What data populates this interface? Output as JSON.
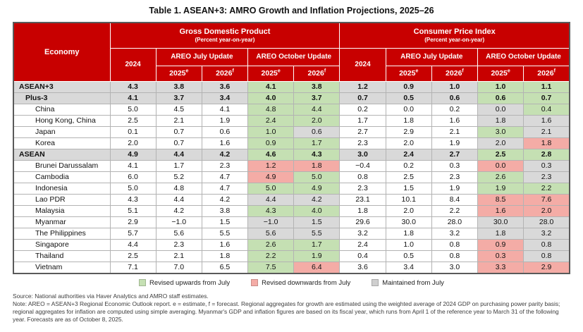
{
  "title": "Table 1. ASEAN+3: AMRO Growth and Inflation Projections, 2025–26",
  "table": {
    "header": {
      "economy": "Economy",
      "gdp": {
        "label": "Gross Domestic Product",
        "sublabel": "(Percent year-on-year)"
      },
      "cpi": {
        "label": "Consumer Price Index",
        "sublabel": "(Percent year-on-year)"
      },
      "y2024": "2024",
      "july": "AREO July Update",
      "october": "AREO October Update",
      "y2025": "2025",
      "sup_e": "e",
      "y2026": "2026",
      "sup_f": "f"
    },
    "rows": [
      {
        "economy": "ASEAN+3",
        "style": "aggregate",
        "indent": 0,
        "values": [
          "4.3",
          "3.8",
          "3.6",
          "4.1",
          "3.8",
          "1.2",
          "0.9",
          "1.0",
          "1.0",
          "1.1"
        ],
        "rev": [
          null,
          null,
          null,
          "up",
          "up",
          null,
          null,
          null,
          "up",
          "up"
        ]
      },
      {
        "economy": "Plus-3",
        "style": "aggregate",
        "indent": 1,
        "values": [
          "4.1",
          "3.7",
          "3.4",
          "4.0",
          "3.7",
          "0.7",
          "0.5",
          "0.6",
          "0.6",
          "0.7"
        ],
        "rev": [
          null,
          null,
          null,
          "up",
          "up",
          null,
          null,
          null,
          "up",
          "up"
        ]
      },
      {
        "economy": "China",
        "style": "member",
        "indent": 2,
        "values": [
          "5.0",
          "4.5",
          "4.1",
          "4.8",
          "4.4",
          "0.2",
          "0.0",
          "0.2",
          "0.0",
          "0.4"
        ],
        "rev": [
          null,
          null,
          null,
          "up",
          "up",
          null,
          null,
          null,
          "same",
          "up"
        ]
      },
      {
        "economy": "Hong Kong, China",
        "style": "member",
        "indent": 2,
        "values": [
          "2.5",
          "2.1",
          "1.9",
          "2.4",
          "2.0",
          "1.7",
          "1.8",
          "1.6",
          "1.8",
          "1.6"
        ],
        "rev": [
          null,
          null,
          null,
          "up",
          "up",
          null,
          null,
          null,
          "same",
          "same"
        ]
      },
      {
        "economy": "Japan",
        "style": "member",
        "indent": 2,
        "values": [
          "0.1",
          "0.7",
          "0.6",
          "1.0",
          "0.6",
          "2.7",
          "2.9",
          "2.1",
          "3.0",
          "2.1"
        ],
        "rev": [
          null,
          null,
          null,
          "up",
          "same",
          null,
          null,
          null,
          "up",
          "same"
        ]
      },
      {
        "economy": "Korea",
        "style": "member",
        "indent": 2,
        "values": [
          "2.0",
          "0.7",
          "1.6",
          "0.9",
          "1.7",
          "2.3",
          "2.0",
          "1.9",
          "2.0",
          "1.8"
        ],
        "rev": [
          null,
          null,
          null,
          "up",
          "up",
          null,
          null,
          null,
          "same",
          "down"
        ]
      },
      {
        "economy": "ASEAN",
        "style": "aggregate",
        "indent": 0,
        "values": [
          "4.9",
          "4.4",
          "4.2",
          "4.6",
          "4.3",
          "3.0",
          "2.4",
          "2.7",
          "2.5",
          "2.8"
        ],
        "rev": [
          null,
          null,
          null,
          "up",
          "up",
          null,
          null,
          null,
          "up",
          "up"
        ]
      },
      {
        "economy": "Brunei Darussalam",
        "style": "member",
        "indent": 2,
        "values": [
          "4.1",
          "1.7",
          "2.3",
          "1.2",
          "1.8",
          "−0.4",
          "0.2",
          "0.3",
          "0.0",
          "0.3"
        ],
        "rev": [
          null,
          null,
          null,
          "down",
          "down",
          null,
          null,
          null,
          "down",
          "same"
        ]
      },
      {
        "economy": "Cambodia",
        "style": "member",
        "indent": 2,
        "values": [
          "6.0",
          "5.2",
          "4.7",
          "4.9",
          "5.0",
          "0.8",
          "2.5",
          "2.3",
          "2.6",
          "2.3"
        ],
        "rev": [
          null,
          null,
          null,
          "down",
          "up",
          null,
          null,
          null,
          "up",
          "same"
        ]
      },
      {
        "economy": "Indonesia",
        "style": "member",
        "indent": 2,
        "values": [
          "5.0",
          "4.8",
          "4.7",
          "5.0",
          "4.9",
          "2.3",
          "1.5",
          "1.9",
          "1.9",
          "2.2"
        ],
        "rev": [
          null,
          null,
          null,
          "up",
          "up",
          null,
          null,
          null,
          "up",
          "up"
        ]
      },
      {
        "economy": "Lao PDR",
        "style": "member",
        "indent": 2,
        "values": [
          "4.3",
          "4.4",
          "4.2",
          "4.4",
          "4.2",
          "23.1",
          "10.1",
          "8.4",
          "8.5",
          "7.6"
        ],
        "rev": [
          null,
          null,
          null,
          "same",
          "same",
          null,
          null,
          null,
          "down",
          "down"
        ]
      },
      {
        "economy": "Malaysia",
        "style": "member",
        "indent": 2,
        "values": [
          "5.1",
          "4.2",
          "3.8",
          "4.3",
          "4.0",
          "1.8",
          "2.0",
          "2.2",
          "1.6",
          "2.0"
        ],
        "rev": [
          null,
          null,
          null,
          "up",
          "up",
          null,
          null,
          null,
          "down",
          "down"
        ]
      },
      {
        "economy": "Myanmar",
        "style": "member",
        "indent": 2,
        "values": [
          "2.9",
          "−1.0",
          "1.5",
          "−1.0",
          "1.5",
          "29.6",
          "30.0",
          "28.0",
          "30.0",
          "28.0"
        ],
        "rev": [
          null,
          null,
          null,
          "same",
          "same",
          null,
          null,
          null,
          "same",
          "same"
        ]
      },
      {
        "economy": "The Philippines",
        "style": "member",
        "indent": 2,
        "values": [
          "5.7",
          "5.6",
          "5.5",
          "5.6",
          "5.5",
          "3.2",
          "1.8",
          "3.2",
          "1.8",
          "3.2"
        ],
        "rev": [
          null,
          null,
          null,
          "same",
          "same",
          null,
          null,
          null,
          "same",
          "same"
        ]
      },
      {
        "economy": "Singapore",
        "style": "member",
        "indent": 2,
        "values": [
          "4.4",
          "2.3",
          "1.6",
          "2.6",
          "1.7",
          "2.4",
          "1.0",
          "0.8",
          "0.9",
          "0.8"
        ],
        "rev": [
          null,
          null,
          null,
          "up",
          "up",
          null,
          null,
          null,
          "down",
          "same"
        ]
      },
      {
        "economy": "Thailand",
        "style": "member",
        "indent": 2,
        "values": [
          "2.5",
          "2.1",
          "1.8",
          "2.2",
          "1.9",
          "0.4",
          "0.5",
          "0.8",
          "0.3",
          "0.8"
        ],
        "rev": [
          null,
          null,
          null,
          "up",
          "up",
          null,
          null,
          null,
          "down",
          "same"
        ]
      },
      {
        "economy": "Vietnam",
        "style": "member",
        "indent": 2,
        "values": [
          "7.1",
          "7.0",
          "6.5",
          "7.5",
          "6.4",
          "3.6",
          "3.4",
          "3.0",
          "3.3",
          "2.9"
        ],
        "rev": [
          null,
          null,
          null,
          "up",
          "down",
          null,
          null,
          null,
          "down",
          "down"
        ]
      }
    ]
  },
  "legend": [
    {
      "label": "Revised upwards from July",
      "color": "#c5e0b3"
    },
    {
      "label": "Revised downwards from July",
      "color": "#f4aca6"
    },
    {
      "label": "Maintained from July",
      "color": "#cfcfcf"
    }
  ],
  "footnotes": {
    "source": "Source: National authorities via Haver Analytics and AMRO staff estimates.",
    "note": "Note: AREO = ASEAN+3 Regional Economic Outlook report. e = estimate, f = forecast. Regional aggregates for growth are estimated using the weighted average of 2024 GDP on purchasing power parity basis; regional aggregates for inflation are computed using simple averaging. Myanmar's GDP and inflation figures are based on its fiscal year, which runs from April 1 of the reference year to March 31 of the following year. Forecasts are as of October 8, 2025."
  }
}
